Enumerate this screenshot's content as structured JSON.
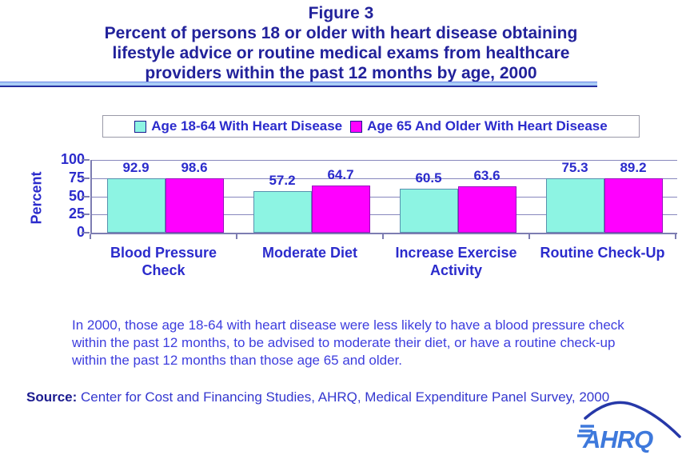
{
  "figure": {
    "label_line": "Figure 3",
    "title_lines": [
      "Percent of persons 18 or older with heart disease obtaining",
      "lifestyle advice or routine medical exams from healthcare",
      "providers within the past 12 months by age, 2000"
    ]
  },
  "legend": {
    "items": [
      {
        "label": "Age 18-64 With Heart Disease",
        "color": "#8DF4E3"
      },
      {
        "label": "Age 65 And Older With Heart Disease",
        "color": "#FF00FF"
      }
    ]
  },
  "chart_data": {
    "type": "bar",
    "categories": [
      "Blood Pressure Check",
      "Moderate Diet",
      "Increase Exercise Activity",
      "Routine Check-Up"
    ],
    "series": [
      {
        "name": "Age 18-64 With Heart Disease",
        "color": "#8DF4E3",
        "values": [
          92.9,
          57.2,
          60.5,
          75.3
        ]
      },
      {
        "name": "Age 65 And Older With Heart Disease",
        "color": "#FF00FF",
        "values": [
          98.6,
          64.7,
          63.6,
          89.2
        ]
      }
    ],
    "title": "Percent of persons 18 or older with heart disease obtaining lifestyle advice or routine medical exams from healthcare providers within the past 12 months by age, 2000",
    "xlabel": "",
    "ylabel": "Percent",
    "ylim": [
      0,
      100
    ],
    "yticks": [
      0,
      25,
      50,
      75,
      100
    ],
    "grid": true,
    "legend_position": "top"
  },
  "narrative": "In 2000, those age 18-64 with heart disease were less likely to have a blood pressure check within the past 12 months, to be advised to moderate their diet, or have a routine check-up within the past 12 months than those age 65 and older.",
  "source": {
    "label": "Source:",
    "text": " Center for Cost and Financing Studies, AHRQ, Medical Expenditure Panel Survey, 2000"
  },
  "logo": {
    "text": "AHRQ"
  },
  "colors": {
    "title": "#22229B",
    "labels": "#2B2BCC",
    "narrative": "#3D3DDE",
    "gridline": "#8787BD",
    "axis": "#7D7DB2",
    "bar_cyan": "#8DF4E3",
    "bar_magenta": "#FF00FF",
    "divider_band": "#A9CCF5",
    "divider_line": "#252DA0",
    "logo_blue": "#3E79DC",
    "logo_swoosh": "#2638A8"
  }
}
